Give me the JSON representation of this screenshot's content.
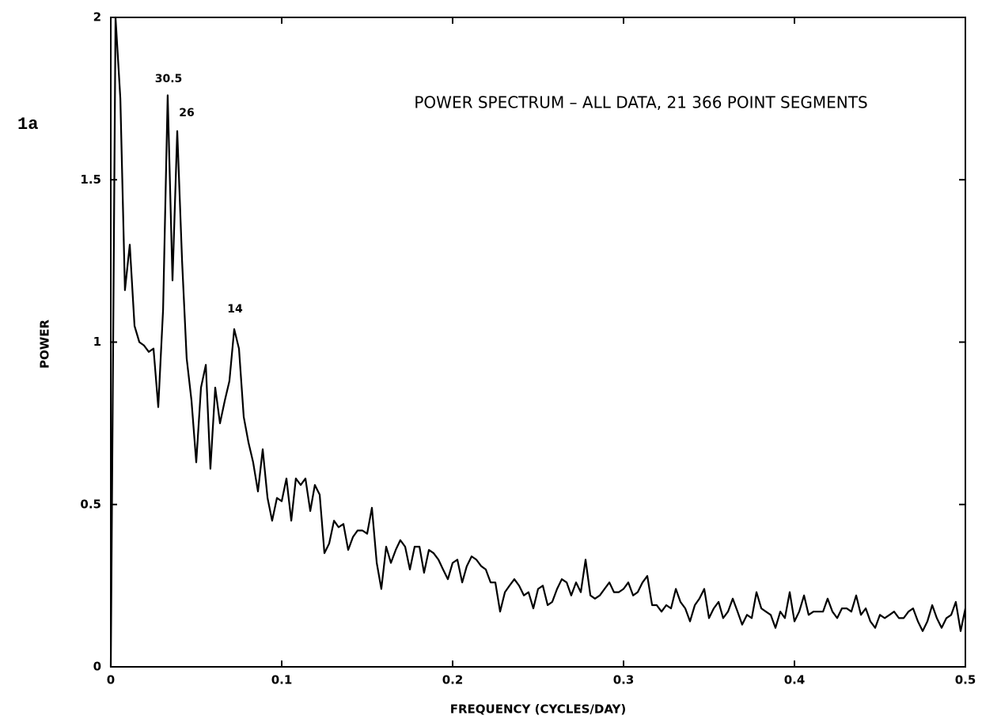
{
  "chart_data": {
    "type": "line",
    "title": "POWER SPECTRUM – ALL DATA, 21 366 POINT SEGMENTS",
    "figure_label": "1a",
    "xlabel": "FREQUENCY (CYCLES/DAY)",
    "ylabel": "POWER",
    "annotations": [
      "30.5",
      "26",
      "14"
    ],
    "color": "#000000",
    "xlim": [
      0,
      0.5
    ],
    "ylim": [
      0,
      2
    ],
    "xticks": [
      0,
      0.1,
      0.2,
      0.3,
      0.4,
      0.5
    ],
    "yticks": [
      0,
      0.5,
      1,
      1.5,
      2
    ],
    "x": [
      0,
      0.0028,
      0.0056,
      0.0083,
      0.0111,
      0.0139,
      0.0167,
      0.0194,
      0.0222,
      0.025,
      0.0278,
      0.0306,
      0.0333,
      0.0361,
      0.0389,
      0.0417,
      0.0444,
      0.0472,
      0.05,
      0.0528,
      0.0556,
      0.0583,
      0.0611,
      0.0639,
      0.0667,
      0.0694,
      0.0722,
      0.075,
      0.0778,
      0.0806,
      0.0833,
      0.0861,
      0.0889,
      0.0917,
      0.0944,
      0.0972,
      0.1,
      0.1028,
      0.1056,
      0.1083,
      0.1111,
      0.1139,
      0.1167,
      0.1194,
      0.1222,
      0.125,
      0.1278,
      0.1306,
      0.1333,
      0.1361,
      0.1389,
      0.1417,
      0.1444,
      0.1472,
      0.15,
      0.1528,
      0.1556,
      0.1583,
      0.1611,
      0.1639,
      0.1667,
      0.1694,
      0.1722,
      0.175,
      0.1778,
      0.1806,
      0.1833,
      0.1861,
      0.1889,
      0.1917,
      0.1944,
      0.1972,
      0.2,
      0.2028,
      0.2056,
      0.2083,
      0.2111,
      0.2139,
      0.2167,
      0.2194,
      0.2222,
      0.225,
      0.2278,
      0.2306,
      0.2333,
      0.2361,
      0.2389,
      0.2417,
      0.2444,
      0.2472,
      0.25,
      0.2528,
      0.2556,
      0.2583,
      0.2611,
      0.2639,
      0.2667,
      0.2694,
      0.2722,
      0.275,
      0.2778,
      0.2806,
      0.2833,
      0.2861,
      0.2889,
      0.2917,
      0.2944,
      0.2972,
      0.3,
      0.3028,
      0.3056,
      0.3083,
      0.3111,
      0.3139,
      0.3167,
      0.3194,
      0.3222,
      0.325,
      0.3278,
      0.3306,
      0.3333,
      0.3361,
      0.3389,
      0.3417,
      0.3444,
      0.3472,
      0.35,
      0.3528,
      0.3556,
      0.3583,
      0.3611,
      0.3639,
      0.3667,
      0.3694,
      0.3722,
      0.375,
      0.3778,
      0.3806,
      0.3833,
      0.3861,
      0.3889,
      0.3917,
      0.3944,
      0.3972,
      0.4,
      0.4028,
      0.4056,
      0.4083,
      0.4111,
      0.4139,
      0.4167,
      0.4194,
      0.4222,
      0.425,
      0.4278,
      0.4306,
      0.4333,
      0.4361,
      0.4389,
      0.4417,
      0.4444,
      0.4472,
      0.45,
      0.4528,
      0.4556,
      0.4583,
      0.4611,
      0.4639,
      0.4667,
      0.4694,
      0.4722,
      0.475,
      0.4778,
      0.4806,
      0.4833,
      0.4861,
      0.4889,
      0.4917,
      0.4944,
      0.4972,
      0.5
    ],
    "values": [
      0,
      2,
      1.75,
      1.16,
      1.3,
      1.05,
      1,
      0.99,
      0.97,
      0.98,
      0.8,
      1.1,
      1.76,
      1.19,
      1.65,
      1.25,
      0.95,
      0.82,
      0.63,
      0.86,
      0.93,
      0.61,
      0.86,
      0.75,
      0.82,
      0.88,
      1.04,
      0.98,
      0.77,
      0.69,
      0.63,
      0.54,
      0.67,
      0.52,
      0.45,
      0.52,
      0.51,
      0.58,
      0.45,
      0.58,
      0.56,
      0.58,
      0.48,
      0.56,
      0.53,
      0.35,
      0.38,
      0.45,
      0.43,
      0.44,
      0.36,
      0.4,
      0.42,
      0.42,
      0.41,
      0.49,
      0.32,
      0.24,
      0.37,
      0.32,
      0.36,
      0.39,
      0.37,
      0.3,
      0.37,
      0.37,
      0.29,
      0.36,
      0.35,
      0.33,
      0.3,
      0.27,
      0.32,
      0.33,
      0.26,
      0.31,
      0.34,
      0.33,
      0.31,
      0.3,
      0.26,
      0.26,
      0.17,
      0.23,
      0.25,
      0.27,
      0.25,
      0.22,
      0.23,
      0.18,
      0.24,
      0.25,
      0.19,
      0.2,
      0.24,
      0.27,
      0.26,
      0.22,
      0.26,
      0.23,
      0.33,
      0.22,
      0.21,
      0.22,
      0.24,
      0.26,
      0.23,
      0.23,
      0.24,
      0.26,
      0.22,
      0.23,
      0.26,
      0.28,
      0.19,
      0.19,
      0.17,
      0.19,
      0.18,
      0.24,
      0.2,
      0.18,
      0.14,
      0.19,
      0.21,
      0.24,
      0.15,
      0.18,
      0.2,
      0.15,
      0.17,
      0.21,
      0.17,
      0.13,
      0.16,
      0.15,
      0.23,
      0.18,
      0.17,
      0.16,
      0.12,
      0.17,
      0.15,
      0.23,
      0.14,
      0.17,
      0.22,
      0.16,
      0.17,
      0.17,
      0.17,
      0.21,
      0.17,
      0.15,
      0.18,
      0.18,
      0.17,
      0.22,
      0.16,
      0.18,
      0.14,
      0.12,
      0.16,
      0.15,
      0.16,
      0.17,
      0.15,
      0.15,
      0.17,
      0.18,
      0.14,
      0.11,
      0.14,
      0.19,
      0.15,
      0.12,
      0.15,
      0.16,
      0.2,
      0.11,
      0.18
    ]
  }
}
